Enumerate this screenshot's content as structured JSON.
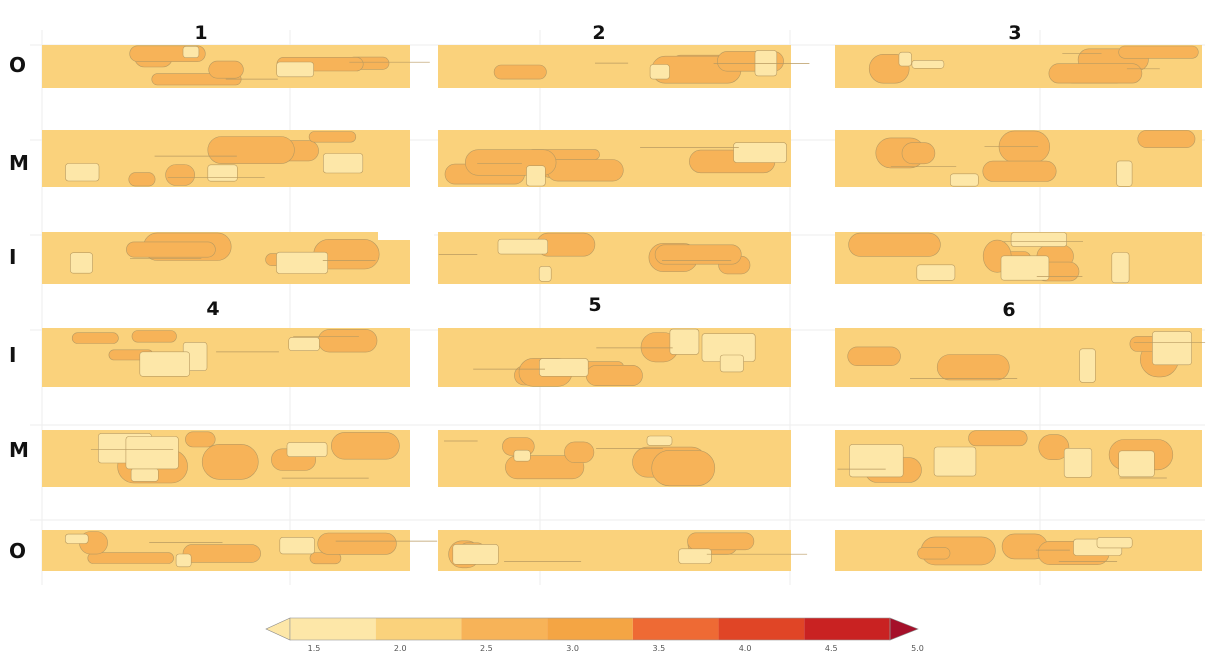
{
  "chart_data": {
    "type": "heatmap",
    "panel_titles": [
      "1",
      "2",
      "3",
      "4",
      "5",
      "6"
    ],
    "row_labels_top": [
      "O",
      "M",
      "I"
    ],
    "row_labels_bottom": [
      "I",
      "M",
      "O"
    ],
    "colorbar": {
      "ticks": [
        "1.5",
        "2.0",
        "2.5",
        "3.0",
        "3.5",
        "4.0",
        "4.5",
        "5.0"
      ],
      "colors": [
        "#fde7a8",
        "#fad27c",
        "#f7b358",
        "#f4a544",
        "#ee6a34",
        "#e04526",
        "#c92222",
        "#a5102a"
      ],
      "extend": "both"
    },
    "base_level_color": "#fad27c",
    "contour_line_color": "#b89a60"
  }
}
